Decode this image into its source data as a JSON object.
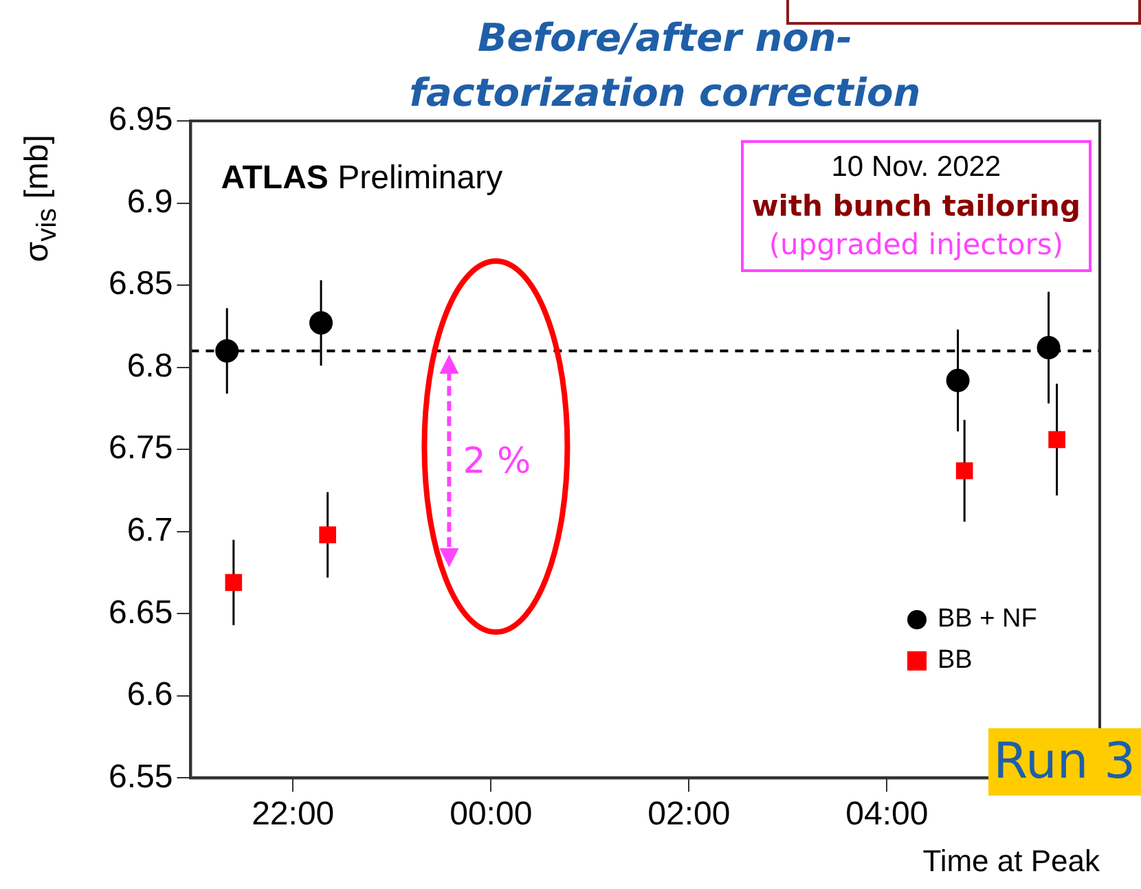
{
  "chart_data": {
    "type": "scatter",
    "title": "Before/after non-factorization correction",
    "xlabel": "Time at Peak",
    "ylabel": "σ$_{vis}$ [mb]",
    "xlim": [
      "2022-11-10T20:58",
      "2022-11-11T06:09"
    ],
    "xticks": [
      {
        "value": "2022-11-10T22:00",
        "label": "22:00"
      },
      {
        "value": "2022-11-11T00:00",
        "label": "00:00"
      },
      {
        "value": "2022-11-11T02:00",
        "label": "02:00"
      },
      {
        "value": "2022-11-11T04:00",
        "label": "04:00"
      }
    ],
    "ylim": [
      6.55,
      6.95
    ],
    "yticks": [
      6.55,
      6.6,
      6.65,
      6.7,
      6.75,
      6.8,
      6.85,
      6.9,
      6.95
    ],
    "series": [
      {
        "name": "BB + NF",
        "color": "#000000",
        "marker": "circle",
        "x": [
          "2022-11-10T21:20",
          "2022-11-10T22:17",
          "2022-11-11T04:43",
          "2022-11-11T05:38"
        ],
        "values": [
          6.81,
          6.827,
          6.792,
          6.812
        ],
        "errors": [
          0.026,
          0.026,
          0.031,
          0.034
        ]
      },
      {
        "name": "BB",
        "color": "#ff0000",
        "marker": "square",
        "x": [
          "2022-11-10T21:24",
          "2022-11-10T22:21",
          "2022-11-11T04:47",
          "2022-11-11T05:43"
        ],
        "values": [
          6.669,
          6.698,
          6.737,
          6.756
        ],
        "errors": [
          0.026,
          0.026,
          0.031,
          0.034
        ]
      }
    ],
    "ref_lines": [
      {
        "axis": "y",
        "value": 6.81,
        "line_style": "dashed",
        "color": "#000000"
      }
    ],
    "legend": "bottom right",
    "grid": false,
    "annotations": [
      "ATLAS",
      "Preliminary",
      "10 Nov. 2022",
      "with bunch tailoring",
      "(upgraded injectors)",
      "2 %",
      "Run 3"
    ]
  }
}
